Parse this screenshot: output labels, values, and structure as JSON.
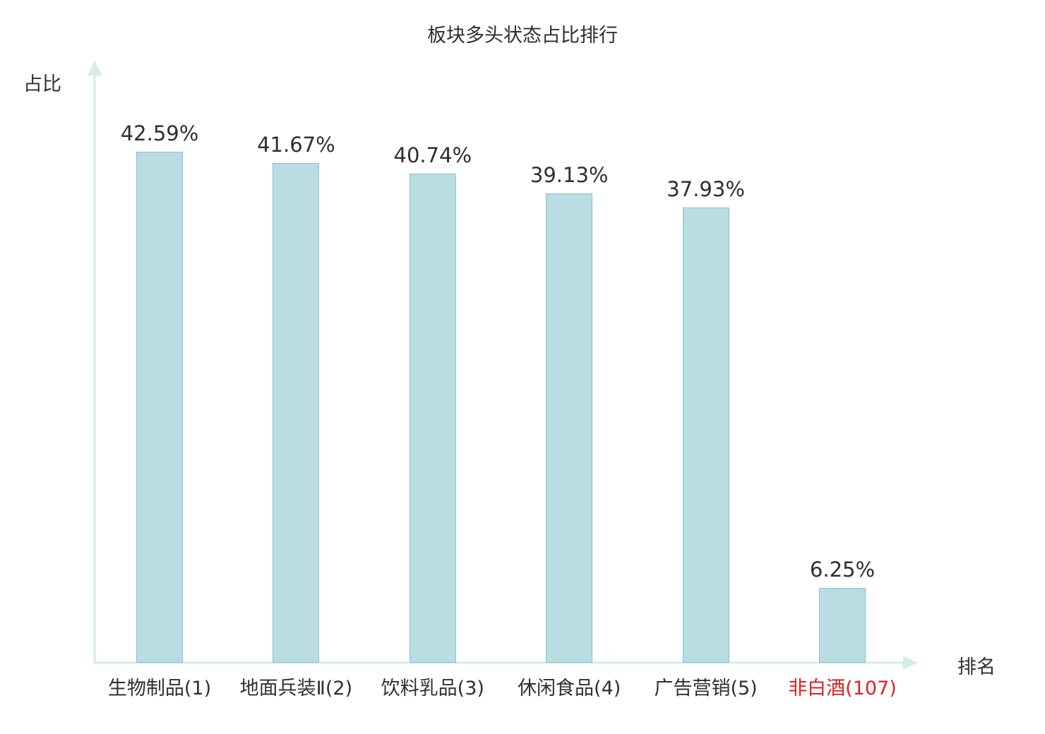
{
  "title": "板块多头状态占比排行",
  "colors": {
    "bar_fill": "#b9dde2",
    "bar_border": "#85c2ca",
    "axis": "#d5ece8",
    "text": "#2f2f2f",
    "highlight": "#e01f1f"
  },
  "chart_data": {
    "type": "bar",
    "title": "板块多头状态占比排行",
    "xlabel": "排名",
    "ylabel": "占比",
    "categories": [
      "生物制品(1)",
      "地面兵装Ⅱ(2)",
      "饮料乳品(3)",
      "休闲食品(4)",
      "广告营销(5)",
      "非白酒(107)"
    ],
    "values": [
      42.59,
      41.67,
      40.74,
      39.13,
      37.93,
      6.25
    ],
    "value_labels": [
      "42.59%",
      "41.67%",
      "40.74%",
      "39.13%",
      "37.93%",
      "6.25%"
    ],
    "highlighted_category_index": 5,
    "ylim": [
      0,
      50
    ],
    "grid": false,
    "legend": null
  }
}
